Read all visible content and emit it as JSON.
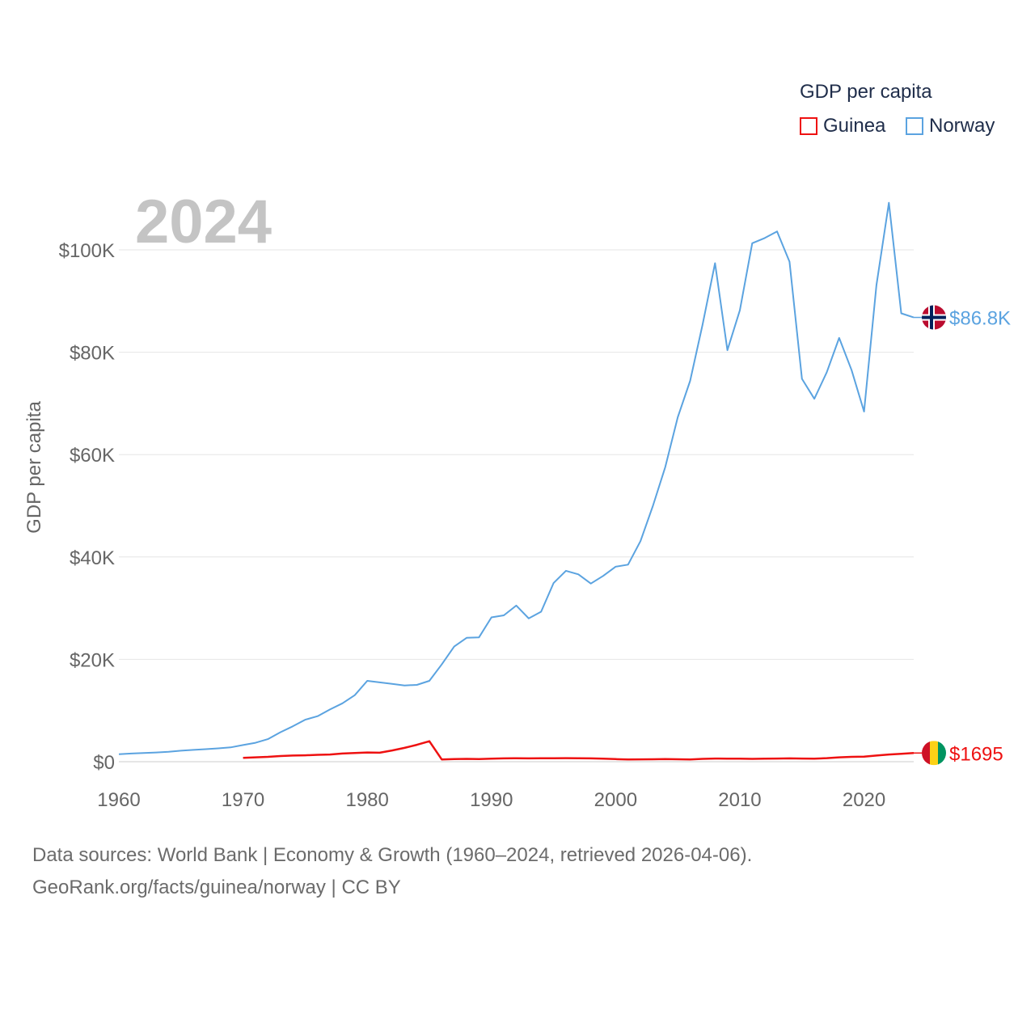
{
  "chart_data": {
    "type": "line",
    "big_year_label": "2024",
    "ylabel": "GDP per capita",
    "xlabel": "",
    "xlim": [
      1960,
      2024
    ],
    "ylim": [
      0,
      110000
    ],
    "y_ticks": [
      {
        "value": 0,
        "label": "$0"
      },
      {
        "value": 20000,
        "label": "$20K"
      },
      {
        "value": 40000,
        "label": "$40K"
      },
      {
        "value": 60000,
        "label": "$60K"
      },
      {
        "value": 80000,
        "label": "$80K"
      },
      {
        "value": 100000,
        "label": "$100K"
      }
    ],
    "x_ticks": [
      {
        "value": 1960,
        "label": "1960"
      },
      {
        "value": 1970,
        "label": "1970"
      },
      {
        "value": 1980,
        "label": "1980"
      },
      {
        "value": 1990,
        "label": "1990"
      },
      {
        "value": 2000,
        "label": "2000"
      },
      {
        "value": 2010,
        "label": "2010"
      },
      {
        "value": 2020,
        "label": "2020"
      }
    ],
    "legend": {
      "title": "GDP per capita",
      "placement": "top-right",
      "entries": [
        "Guinea",
        "Norway"
      ]
    },
    "series": [
      {
        "name": "Guinea",
        "color": "#ee1111",
        "end_label": "$1695",
        "flag": "guinea",
        "x": [
          1970,
          1971,
          1972,
          1973,
          1974,
          1975,
          1976,
          1977,
          1978,
          1979,
          1980,
          1981,
          1982,
          1983,
          1984,
          1985,
          1986,
          1987,
          1988,
          1989,
          1990,
          1991,
          1992,
          1993,
          1994,
          1995,
          1996,
          1997,
          1998,
          1999,
          2000,
          2001,
          2002,
          2003,
          2004,
          2005,
          2006,
          2007,
          2008,
          2009,
          2010,
          2011,
          2012,
          2013,
          2014,
          2015,
          2016,
          2017,
          2018,
          2019,
          2020,
          2021,
          2022,
          2023,
          2024
        ],
        "values": [
          750,
          850,
          950,
          1100,
          1200,
          1250,
          1350,
          1400,
          1600,
          1700,
          1800,
          1750,
          2200,
          2700,
          3300,
          4000,
          450,
          500,
          550,
          520,
          600,
          650,
          680,
          650,
          660,
          680,
          700,
          680,
          650,
          600,
          500,
          450,
          460,
          480,
          500,
          470,
          420,
          550,
          620,
          600,
          580,
          550,
          600,
          620,
          650,
          620,
          600,
          700,
          850,
          950,
          980,
          1200,
          1400,
          1550,
          1695
        ]
      },
      {
        "name": "Norway",
        "color": "#5ba3e0",
        "end_label": "$86.8K",
        "flag": "norway",
        "x": [
          1960,
          1961,
          1962,
          1963,
          1964,
          1965,
          1966,
          1967,
          1968,
          1969,
          1970,
          1971,
          1972,
          1973,
          1974,
          1975,
          1976,
          1977,
          1978,
          1979,
          1980,
          1981,
          1982,
          1983,
          1984,
          1985,
          1986,
          1987,
          1988,
          1989,
          1990,
          1991,
          1992,
          1993,
          1994,
          1995,
          1996,
          1997,
          1998,
          1999,
          2000,
          2001,
          2002,
          2003,
          2004,
          2005,
          2006,
          2007,
          2008,
          2009,
          2010,
          2011,
          2012,
          2013,
          2014,
          2015,
          2016,
          2017,
          2018,
          2019,
          2020,
          2021,
          2022,
          2023,
          2024
        ],
        "values": [
          1450,
          1600,
          1700,
          1800,
          1950,
          2150,
          2300,
          2450,
          2600,
          2800,
          3250,
          3700,
          4400,
          5750,
          6900,
          8200,
          8900,
          10200,
          11400,
          13000,
          15800,
          15500,
          15200,
          14900,
          15000,
          15800,
          19000,
          22500,
          24200,
          24300,
          28200,
          28600,
          30500,
          28000,
          29300,
          34900,
          37300,
          36600,
          34800,
          36300,
          38100,
          38500,
          43100,
          50000,
          57600,
          67300,
          74400,
          85400,
          97400,
          80400,
          88200,
          101300,
          102300,
          103600,
          97700,
          74800,
          70900,
          76100,
          82800,
          76500,
          68400,
          93100,
          109200,
          87600,
          86800
        ]
      }
    ],
    "source_text": "Data sources: World Bank | Economy & Growth (1960–2024, retrieved 2026-04-06).",
    "credit_text": "GeoRank.org/facts/guinea/norway | CC BY"
  }
}
